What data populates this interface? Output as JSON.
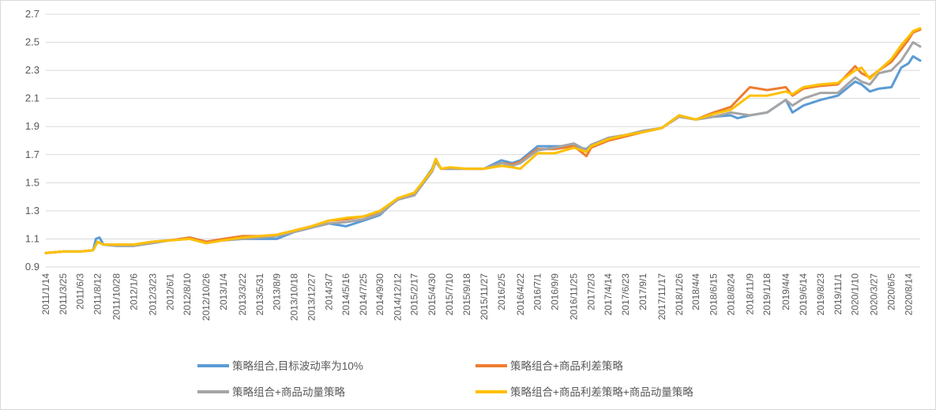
{
  "chart_data": {
    "type": "line",
    "title": "",
    "xlabel": "",
    "ylabel": "",
    "ylim": [
      0.9,
      2.7
    ],
    "yticks": [
      "0.9",
      "1.1",
      "1.3",
      "1.5",
      "1.7",
      "1.9",
      "2.1",
      "2.3",
      "2.5",
      "2.7"
    ],
    "grid": "horizontal",
    "legend": "bottom",
    "x_range": [
      "2011-01-14",
      "2020-09-30"
    ],
    "xtick_labels": [
      "2011/1/14",
      "2011/3/25",
      "2011/6/3",
      "2011/8/12",
      "2011/10/28",
      "2012/1/6",
      "2012/3/23",
      "2012/6/1",
      "2012/8/10",
      "2012/10/26",
      "2013/1/4",
      "2013/3/22",
      "2013/5/31",
      "2013/8/9",
      "2013/10/18",
      "2013/12/27",
      "2014/3/7",
      "2014/5/16",
      "2014/7/25",
      "2014/9/30",
      "2014/12/12",
      "2015/2/17",
      "2015/4/30",
      "2015/7/10",
      "2015/9/18",
      "2015/11/27",
      "2016/2/5",
      "2016/4/22",
      "2016/7/1",
      "2016/9/9",
      "2016/11/25",
      "2017/2/3",
      "2017/4/14",
      "2017/6/23",
      "2017/9/1",
      "2017/11/17",
      "2018/1/26",
      "2018/4/4",
      "2018/6/15",
      "2018/8/24",
      "2018/11/9",
      "2019/1/18",
      "2019/4/4",
      "2019/6/14",
      "2019/8/23",
      "2019/11/1",
      "2020/1/10",
      "2020/3/27",
      "2020/6/5",
      "2020/8/14"
    ],
    "series": [
      {
        "name": "策略组合,目标波动率为10%",
        "color": "#5B9BD5",
        "points": [
          [
            "2011-01-14",
            1.0
          ],
          [
            "2011-03-25",
            1.01
          ],
          [
            "2011-06-03",
            1.01
          ],
          [
            "2011-07-25",
            1.02
          ],
          [
            "2011-08-05",
            1.1
          ],
          [
            "2011-08-20",
            1.11
          ],
          [
            "2011-09-05",
            1.06
          ],
          [
            "2011-10-28",
            1.05
          ],
          [
            "2012-01-06",
            1.05
          ],
          [
            "2012-03-23",
            1.08
          ],
          [
            "2012-06-01",
            1.09
          ],
          [
            "2012-08-20",
            1.11
          ],
          [
            "2012-10-26",
            1.08
          ],
          [
            "2013-01-04",
            1.09
          ],
          [
            "2013-03-22",
            1.1
          ],
          [
            "2013-05-31",
            1.1
          ],
          [
            "2013-08-09",
            1.1
          ],
          [
            "2013-10-18",
            1.15
          ],
          [
            "2013-12-27",
            1.18
          ],
          [
            "2014-03-07",
            1.21
          ],
          [
            "2014-05-16",
            1.19
          ],
          [
            "2014-07-25",
            1.23
          ],
          [
            "2014-09-30",
            1.27
          ],
          [
            "2014-12-12",
            1.39
          ],
          [
            "2015-02-17",
            1.42
          ],
          [
            "2015-04-30",
            1.6
          ],
          [
            "2015-05-15",
            1.67
          ],
          [
            "2015-06-05",
            1.6
          ],
          [
            "2015-07-10",
            1.6
          ],
          [
            "2015-09-18",
            1.6
          ],
          [
            "2015-11-27",
            1.6
          ],
          [
            "2016-02-05",
            1.66
          ],
          [
            "2016-03-20",
            1.64
          ],
          [
            "2016-04-22",
            1.66
          ],
          [
            "2016-07-01",
            1.76
          ],
          [
            "2016-09-09",
            1.76
          ],
          [
            "2016-11-25",
            1.76
          ],
          [
            "2017-01-15",
            1.74
          ],
          [
            "2017-02-03",
            1.77
          ],
          [
            "2017-04-14",
            1.81
          ],
          [
            "2017-06-23",
            1.84
          ],
          [
            "2017-09-01",
            1.86
          ],
          [
            "2017-11-17",
            1.89
          ],
          [
            "2018-01-26",
            1.98
          ],
          [
            "2018-04-04",
            1.95
          ],
          [
            "2018-06-15",
            1.97
          ],
          [
            "2018-08-24",
            1.98
          ],
          [
            "2018-09-20",
            1.96
          ],
          [
            "2018-11-09",
            1.98
          ],
          [
            "2019-01-18",
            2.0
          ],
          [
            "2019-04-04",
            2.09
          ],
          [
            "2019-05-01",
            2.0
          ],
          [
            "2019-06-14",
            2.05
          ],
          [
            "2019-08-23",
            2.09
          ],
          [
            "2019-11-01",
            2.12
          ],
          [
            "2020-01-10",
            2.22
          ],
          [
            "2020-02-05",
            2.2
          ],
          [
            "2020-03-10",
            2.15
          ],
          [
            "2020-04-15",
            2.17
          ],
          [
            "2020-06-05",
            2.18
          ],
          [
            "2020-07-15",
            2.32
          ],
          [
            "2020-08-14",
            2.35
          ],
          [
            "2020-09-01",
            2.4
          ],
          [
            "2020-09-30",
            2.37
          ]
        ]
      },
      {
        "name": "策略组合+商品利差策略",
        "color": "#ED7D31",
        "points": [
          [
            "2011-01-14",
            1.0
          ],
          [
            "2011-03-25",
            1.01
          ],
          [
            "2011-06-03",
            1.01
          ],
          [
            "2011-07-25",
            1.02
          ],
          [
            "2011-08-12",
            1.08
          ],
          [
            "2011-09-05",
            1.06
          ],
          [
            "2011-10-28",
            1.06
          ],
          [
            "2012-01-06",
            1.06
          ],
          [
            "2012-03-23",
            1.08
          ],
          [
            "2012-06-01",
            1.09
          ],
          [
            "2012-08-20",
            1.11
          ],
          [
            "2012-10-26",
            1.08
          ],
          [
            "2013-01-04",
            1.1
          ],
          [
            "2013-03-22",
            1.12
          ],
          [
            "2013-05-31",
            1.12
          ],
          [
            "2013-08-09",
            1.13
          ],
          [
            "2013-10-18",
            1.16
          ],
          [
            "2013-12-27",
            1.19
          ],
          [
            "2014-03-07",
            1.23
          ],
          [
            "2014-05-16",
            1.24
          ],
          [
            "2014-07-25",
            1.26
          ],
          [
            "2014-09-30",
            1.29
          ],
          [
            "2014-12-12",
            1.38
          ],
          [
            "2015-02-17",
            1.42
          ],
          [
            "2015-04-30",
            1.59
          ],
          [
            "2015-05-15",
            1.66
          ],
          [
            "2015-06-05",
            1.6
          ],
          [
            "2015-07-10",
            1.6
          ],
          [
            "2015-09-18",
            1.6
          ],
          [
            "2015-11-27",
            1.6
          ],
          [
            "2016-02-05",
            1.64
          ],
          [
            "2016-03-20",
            1.63
          ],
          [
            "2016-04-22",
            1.65
          ],
          [
            "2016-07-01",
            1.74
          ],
          [
            "2016-09-09",
            1.74
          ],
          [
            "2016-11-25",
            1.76
          ],
          [
            "2017-01-15",
            1.69
          ],
          [
            "2017-02-03",
            1.75
          ],
          [
            "2017-04-14",
            1.8
          ],
          [
            "2017-06-23",
            1.83
          ],
          [
            "2017-09-01",
            1.86
          ],
          [
            "2017-11-17",
            1.89
          ],
          [
            "2018-01-26",
            1.97
          ],
          [
            "2018-04-04",
            1.95
          ],
          [
            "2018-06-15",
            2.0
          ],
          [
            "2018-08-24",
            2.04
          ],
          [
            "2018-11-09",
            2.18
          ],
          [
            "2019-01-18",
            2.16
          ],
          [
            "2019-04-04",
            2.18
          ],
          [
            "2019-05-01",
            2.12
          ],
          [
            "2019-06-14",
            2.17
          ],
          [
            "2019-08-23",
            2.19
          ],
          [
            "2019-11-01",
            2.2
          ],
          [
            "2020-01-10",
            2.33
          ],
          [
            "2020-02-05",
            2.28
          ],
          [
            "2020-03-10",
            2.25
          ],
          [
            "2020-04-15",
            2.3
          ],
          [
            "2020-06-05",
            2.36
          ],
          [
            "2020-07-15",
            2.45
          ],
          [
            "2020-08-14",
            2.52
          ],
          [
            "2020-09-01",
            2.57
          ],
          [
            "2020-09-30",
            2.59
          ]
        ]
      },
      {
        "name": "策略组合+商品动量策略",
        "color": "#A5A5A5",
        "points": [
          [
            "2011-01-14",
            1.0
          ],
          [
            "2011-03-25",
            1.01
          ],
          [
            "2011-06-03",
            1.01
          ],
          [
            "2011-07-25",
            1.02
          ],
          [
            "2011-08-12",
            1.08
          ],
          [
            "2011-09-05",
            1.06
          ],
          [
            "2011-10-28",
            1.05
          ],
          [
            "2012-01-06",
            1.05
          ],
          [
            "2012-03-23",
            1.07
          ],
          [
            "2012-06-01",
            1.09
          ],
          [
            "2012-08-20",
            1.1
          ],
          [
            "2012-10-26",
            1.07
          ],
          [
            "2013-01-04",
            1.09
          ],
          [
            "2013-03-22",
            1.1
          ],
          [
            "2013-05-31",
            1.11
          ],
          [
            "2013-08-09",
            1.12
          ],
          [
            "2013-10-18",
            1.15
          ],
          [
            "2013-12-27",
            1.18
          ],
          [
            "2014-03-07",
            1.21
          ],
          [
            "2014-05-16",
            1.22
          ],
          [
            "2014-07-25",
            1.24
          ],
          [
            "2014-09-30",
            1.28
          ],
          [
            "2014-12-12",
            1.38
          ],
          [
            "2015-02-17",
            1.41
          ],
          [
            "2015-04-30",
            1.58
          ],
          [
            "2015-05-15",
            1.65
          ],
          [
            "2015-06-05",
            1.6
          ],
          [
            "2015-07-10",
            1.6
          ],
          [
            "2015-09-18",
            1.6
          ],
          [
            "2015-11-27",
            1.6
          ],
          [
            "2016-02-05",
            1.64
          ],
          [
            "2016-03-20",
            1.62
          ],
          [
            "2016-04-22",
            1.64
          ],
          [
            "2016-07-01",
            1.73
          ],
          [
            "2016-09-09",
            1.75
          ],
          [
            "2016-11-25",
            1.78
          ],
          [
            "2017-01-15",
            1.73
          ],
          [
            "2017-02-03",
            1.77
          ],
          [
            "2017-04-14",
            1.82
          ],
          [
            "2017-06-23",
            1.84
          ],
          [
            "2017-09-01",
            1.87
          ],
          [
            "2017-11-17",
            1.89
          ],
          [
            "2018-01-26",
            1.97
          ],
          [
            "2018-04-04",
            1.95
          ],
          [
            "2018-06-15",
            1.97
          ],
          [
            "2018-08-24",
            2.0
          ],
          [
            "2018-11-09",
            1.98
          ],
          [
            "2019-01-18",
            2.0
          ],
          [
            "2019-04-04",
            2.09
          ],
          [
            "2019-05-01",
            2.05
          ],
          [
            "2019-06-14",
            2.1
          ],
          [
            "2019-08-23",
            2.14
          ],
          [
            "2019-11-01",
            2.14
          ],
          [
            "2020-01-10",
            2.25
          ],
          [
            "2020-02-05",
            2.22
          ],
          [
            "2020-03-10",
            2.2
          ],
          [
            "2020-04-15",
            2.28
          ],
          [
            "2020-06-05",
            2.3
          ],
          [
            "2020-07-15",
            2.37
          ],
          [
            "2020-08-14",
            2.45
          ],
          [
            "2020-09-01",
            2.5
          ],
          [
            "2020-09-30",
            2.47
          ]
        ]
      },
      {
        "name": "策略组合+商品利差策略+商品动量策略",
        "color": "#FFC000",
        "points": [
          [
            "2011-01-14",
            1.0
          ],
          [
            "2011-03-25",
            1.01
          ],
          [
            "2011-06-03",
            1.01
          ],
          [
            "2011-07-25",
            1.02
          ],
          [
            "2011-08-12",
            1.08
          ],
          [
            "2011-09-05",
            1.06
          ],
          [
            "2011-10-28",
            1.06
          ],
          [
            "2012-01-06",
            1.06
          ],
          [
            "2012-03-23",
            1.08
          ],
          [
            "2012-06-01",
            1.09
          ],
          [
            "2012-08-20",
            1.1
          ],
          [
            "2012-10-26",
            1.07
          ],
          [
            "2013-01-04",
            1.09
          ],
          [
            "2013-03-22",
            1.11
          ],
          [
            "2013-05-31",
            1.12
          ],
          [
            "2013-08-09",
            1.13
          ],
          [
            "2013-10-18",
            1.16
          ],
          [
            "2013-12-27",
            1.19
          ],
          [
            "2014-03-07",
            1.23
          ],
          [
            "2014-05-16",
            1.25
          ],
          [
            "2014-07-25",
            1.26
          ],
          [
            "2014-09-30",
            1.3
          ],
          [
            "2014-12-12",
            1.39
          ],
          [
            "2015-02-17",
            1.43
          ],
          [
            "2015-04-30",
            1.59
          ],
          [
            "2015-05-15",
            1.67
          ],
          [
            "2015-06-05",
            1.6
          ],
          [
            "2015-07-10",
            1.61
          ],
          [
            "2015-09-18",
            1.6
          ],
          [
            "2015-11-27",
            1.6
          ],
          [
            "2016-02-05",
            1.62
          ],
          [
            "2016-03-20",
            1.61
          ],
          [
            "2016-04-22",
            1.6
          ],
          [
            "2016-07-01",
            1.71
          ],
          [
            "2016-09-09",
            1.71
          ],
          [
            "2016-11-25",
            1.75
          ],
          [
            "2017-01-15",
            1.72
          ],
          [
            "2017-02-03",
            1.76
          ],
          [
            "2017-04-14",
            1.81
          ],
          [
            "2017-06-23",
            1.84
          ],
          [
            "2017-09-01",
            1.86
          ],
          [
            "2017-11-17",
            1.89
          ],
          [
            "2018-01-26",
            1.98
          ],
          [
            "2018-04-04",
            1.95
          ],
          [
            "2018-06-15",
            1.99
          ],
          [
            "2018-08-24",
            2.02
          ],
          [
            "2018-11-09",
            2.12
          ],
          [
            "2019-01-18",
            2.12
          ],
          [
            "2019-04-04",
            2.15
          ],
          [
            "2019-05-01",
            2.13
          ],
          [
            "2019-06-14",
            2.18
          ],
          [
            "2019-08-23",
            2.2
          ],
          [
            "2019-11-01",
            2.21
          ],
          [
            "2020-01-10",
            2.3
          ],
          [
            "2020-02-05",
            2.32
          ],
          [
            "2020-03-10",
            2.24
          ],
          [
            "2020-04-15",
            2.3
          ],
          [
            "2020-06-05",
            2.38
          ],
          [
            "2020-07-15",
            2.48
          ],
          [
            "2020-08-14",
            2.54
          ],
          [
            "2020-09-01",
            2.58
          ],
          [
            "2020-09-30",
            2.6
          ]
        ]
      }
    ]
  }
}
